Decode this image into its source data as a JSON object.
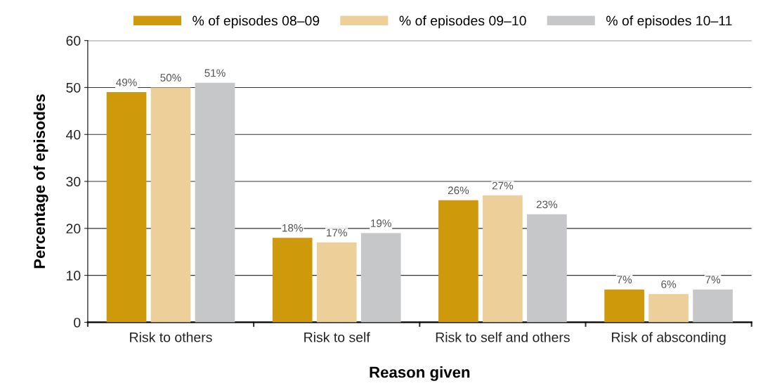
{
  "chart_data": {
    "type": "bar",
    "xlabel": "Reason given",
    "ylabel": "Percentage of episodes",
    "categories": [
      "Risk to others",
      "Risk to self",
      "Risk to self and others",
      "Risk of absconding"
    ],
    "series": [
      {
        "name": "% of episodes 08–09",
        "color": "#cf990c",
        "values": [
          49,
          18,
          26,
          7
        ],
        "value_labels": [
          "49%",
          "18%",
          "26%",
          "7%"
        ]
      },
      {
        "name": "% of episodes 09–10",
        "color": "#edcf99",
        "values": [
          50,
          17,
          27,
          6
        ],
        "value_labels": [
          "50%",
          "17%",
          "27%",
          "6%"
        ]
      },
      {
        "name": "% of episodes 10–11",
        "color": "#c6c7c9",
        "values": [
          51,
          19,
          23,
          7
        ],
        "value_labels": [
          "51%",
          "19%",
          "23%",
          "7%"
        ]
      }
    ],
    "ylim": [
      0,
      60
    ],
    "yticks": [
      0,
      10,
      20,
      30,
      40,
      50,
      60
    ],
    "grid": "y",
    "legend": "top"
  }
}
